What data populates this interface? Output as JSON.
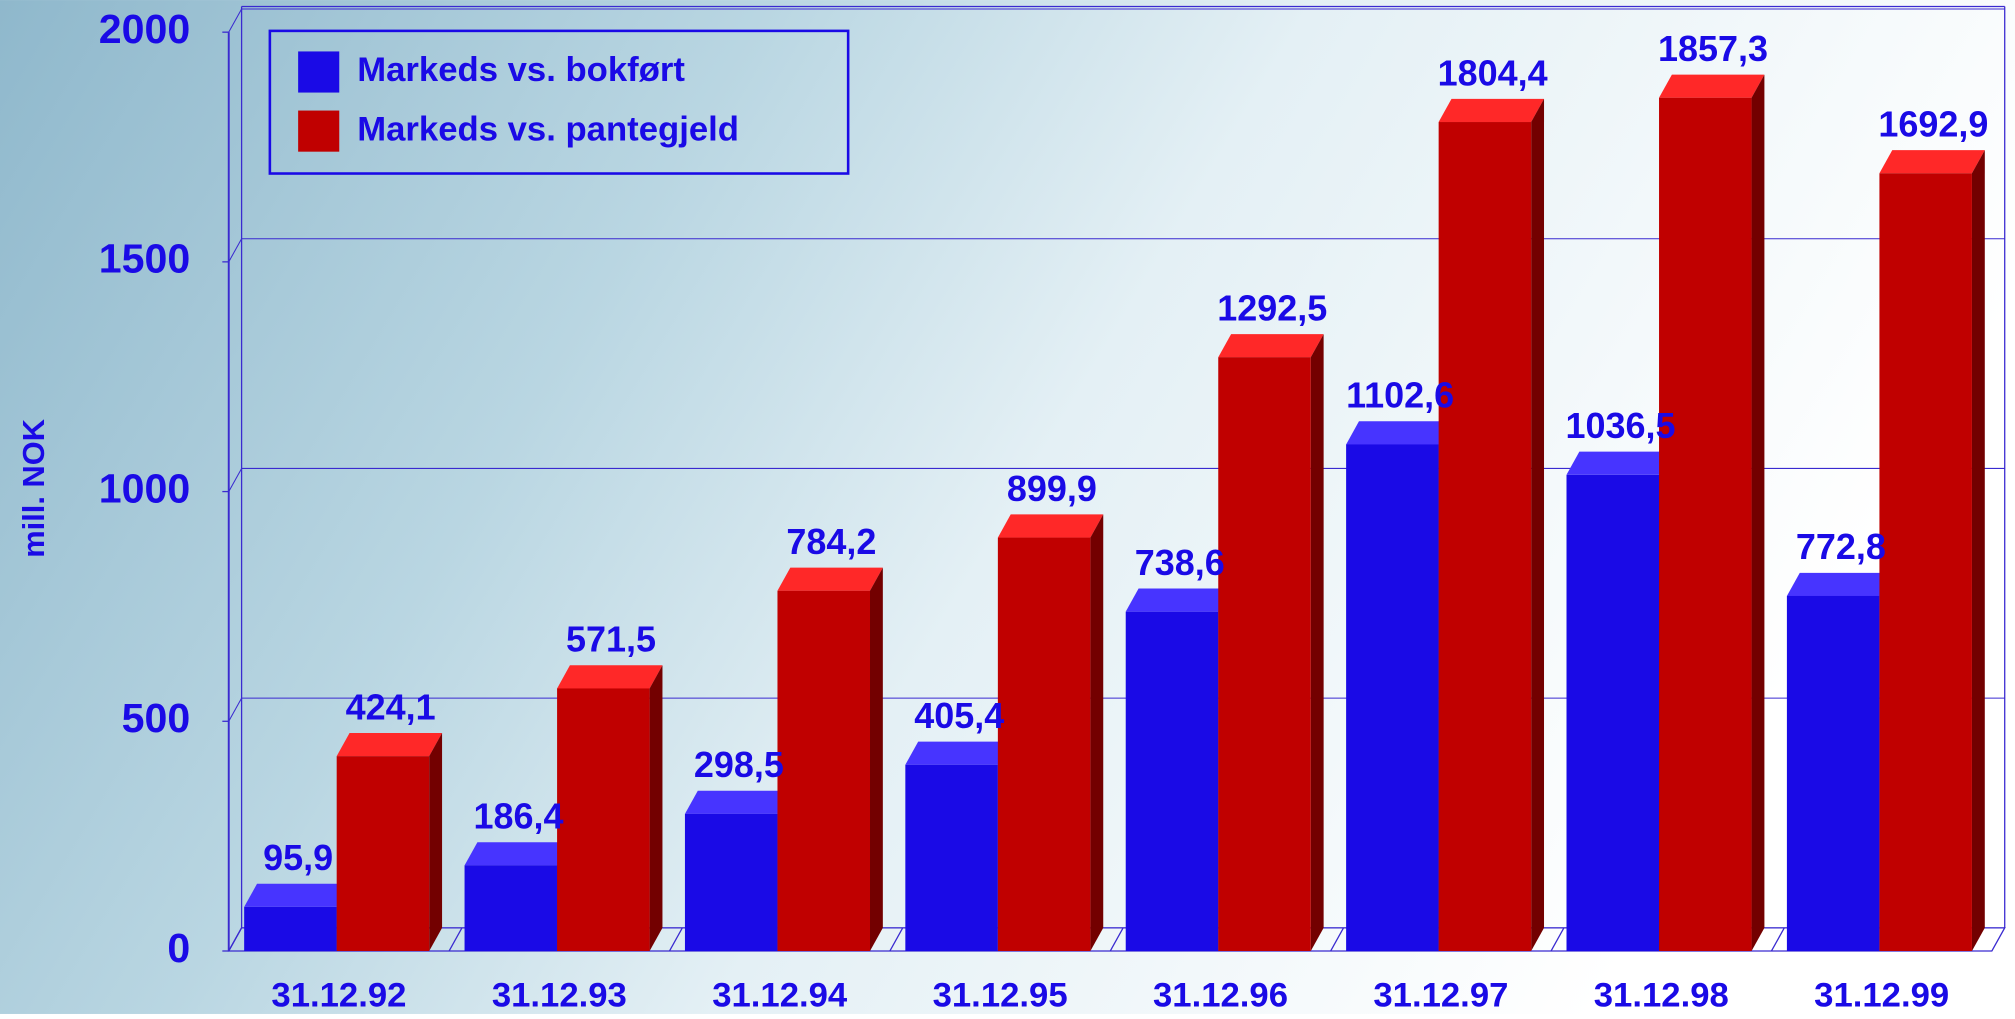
{
  "chart_data": {
    "type": "bar3d",
    "y_label": "mill. NOK",
    "categories": [
      "31.12.92",
      "31.12.93",
      "31.12.94",
      "31.12.95",
      "31.12.96",
      "31.12.97",
      "31.12.98",
      "31.12.99"
    ],
    "series": [
      {
        "name": "Markeds vs. bokført",
        "color": "#1a0ae6",
        "values": [
          95.9,
          186.4,
          298.5,
          405.4,
          738.6,
          1102.6,
          1036.5,
          772.8
        ],
        "value_labels": [
          "95,9",
          "186,4",
          "298,5",
          "405,4",
          "738,6",
          "1102,6",
          "1036,5",
          "772,8"
        ]
      },
      {
        "name": "Markeds vs. pantegjeld",
        "color": "#c00000",
        "values": [
          424.1,
          571.5,
          784.2,
          899.9,
          1292.5,
          1804.4,
          1857.3,
          1692.9
        ],
        "value_labels": [
          "424,1",
          "571,5",
          "784,2",
          "899,9",
          "1292,5",
          "1804,4",
          "1857,3",
          "1692,9"
        ]
      }
    ],
    "ylim": [
      0,
      2000
    ],
    "yticks": [
      0,
      500,
      1000,
      1500,
      2000
    ],
    "grid": true,
    "legend": "top-left"
  }
}
